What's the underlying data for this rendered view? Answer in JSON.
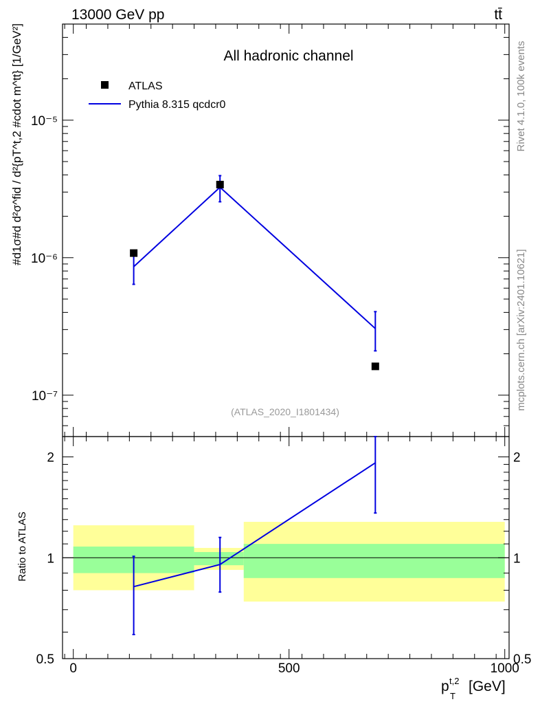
{
  "header": {
    "energy_label": "13000 GeV pp",
    "process_label": "tt̄"
  },
  "side": {
    "rivet_label": "Rivet 4.1.0,  100k events",
    "source_label": "mcplots.cern.ch [arXiv:2401.10621]"
  },
  "chart_data": {
    "type": "line",
    "title": "All hadronic channel",
    "analysis_label": "(ATLAS_2020_I1801434)",
    "xlabel_main": "p",
    "xlabel_sup": "t,2",
    "xlabel_sub": "T",
    "xlabel_unit": "[GeV]",
    "ylabel_main": "#d1σ#dd²σ^{fid}d²{p_T^{t,2} #cdot m^{tt}} [1/GeV²]",
    "ylabel_text": "#d1σ#d  d²σ^fid / d²{pT^t,2 #cdot m^tt} [1/GeV²]",
    "xlim": [
      -25,
      1010
    ],
    "ylim_main": [
      5e-08,
      5e-05
    ],
    "ylim_ratio": [
      0.5,
      2.3
    ],
    "x_ticks": [
      0,
      500,
      1000
    ],
    "x_tick_labels": [
      "0",
      "500",
      "1000"
    ],
    "y_tick_labels_main": [
      "10⁻⁷",
      "10⁻⁶",
      "10⁻⁵"
    ],
    "y_tick_values_main": [
      1e-07,
      1e-06,
      1e-05
    ],
    "ratio_ylabel": "Ratio to ATLAS",
    "ratio_ticks": [
      0.5,
      1,
      2
    ],
    "ratio_tick_labels": [
      "0.5",
      "1",
      "2"
    ],
    "legend": {
      "data_label": "ATLAS",
      "mc_label": "Pythia 8.315 qcdcr0"
    },
    "series": [
      {
        "name": "ATLAS",
        "kind": "data",
        "x": [
          140,
          340,
          700
        ],
        "y": [
          1.08e-06,
          3.4e-06,
          1.62e-07
        ],
        "color": "#000000"
      },
      {
        "name": "Pythia 8.315 qcdcr0",
        "kind": "mc",
        "x": [
          140,
          340,
          700
        ],
        "y": [
          8.6e-07,
          3.25e-06,
          3.05e-07
        ],
        "err_low": [
          6.4e-07,
          2.55e-06,
          2.1e-07
        ],
        "err_high": [
          1.08e-06,
          3.95e-06,
          4.05e-07
        ],
        "color": "#0000e0"
      }
    ],
    "ratio_series": {
      "x": [
        140,
        340,
        700
      ],
      "y": [
        0.82,
        0.955,
        1.92
      ],
      "err_low": [
        0.59,
        0.79,
        1.36
      ],
      "err_high": [
        1.01,
        1.15,
        2.3
      ]
    },
    "ratio_bands": [
      {
        "x0": 0,
        "x1": 280,
        "inner": [
          0.9,
          1.08
        ],
        "outer": [
          0.8,
          1.25
        ]
      },
      {
        "x0": 280,
        "x1": 395,
        "inner": [
          0.95,
          1.04
        ],
        "outer": [
          0.92,
          1.07
        ]
      },
      {
        "x0": 395,
        "x1": 1000,
        "inner": [
          0.87,
          1.1
        ],
        "outer": [
          0.74,
          1.28
        ]
      }
    ],
    "colors": {
      "inner_band": "#99ff99",
      "outer_band": "#ffff99",
      "mc_line": "#0000e0",
      "data_marker": "#000000",
      "analysis_text": "#999999",
      "side_text": "#888888"
    }
  }
}
